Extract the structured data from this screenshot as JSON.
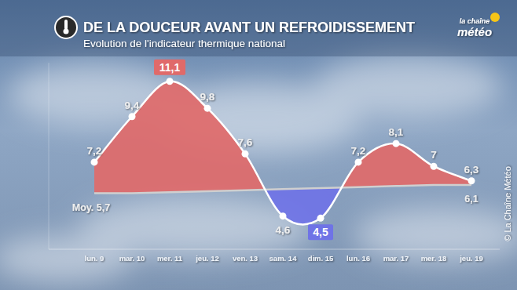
{
  "chart_data": {
    "type": "line",
    "title": "DE LA DOUCEUR AVANT UN REFROIDISSEMENT",
    "subtitle": "Evolution de l'indicateur thermique national",
    "logo": [
      "la chaîne",
      "météo"
    ],
    "credit": "© La Chaîne Météo",
    "categories": [
      "lun. 9",
      "mar. 10",
      "mer. 11",
      "jeu. 12",
      "ven. 13",
      "sam. 14",
      "dim. 15",
      "lun. 16",
      "mar. 17",
      "mer. 18",
      "jeu. 19"
    ],
    "series": [
      {
        "color": "#ffffff",
        "values": [
          7.2,
          9.4,
          11.1,
          9.8,
          7.6,
          4.6,
          4.5,
          7.2,
          8.1,
          7,
          6.3
        ],
        "value_labels": [
          "7,2",
          "9,4",
          "11,1",
          "9,8",
          "7,6",
          "4,6",
          "4,5",
          "7,2",
          "8,1",
          "7",
          "6,3"
        ]
      },
      {
        "color": "#cfcfcf",
        "values": [
          5.7,
          5.7,
          5.75,
          5.8,
          5.85,
          5.9,
          5.95,
          6.0,
          6.05,
          6.1,
          6.1
        ],
        "value_labels": [
          "Moy. 5,7",
          null,
          null,
          null,
          null,
          null,
          null,
          null,
          null,
          null,
          "6,1"
        ]
      }
    ],
    "ylim": [
      3,
      12
    ],
    "yticks": [],
    "grid": false,
    "data_labels": true,
    "tick_labels": "x"
  }
}
